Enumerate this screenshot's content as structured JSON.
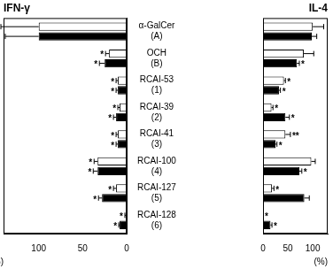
{
  "chart_data": [
    {
      "type": "bar",
      "orientation": "horizontal",
      "title": "IFN-γ",
      "xlabel": "(%)",
      "categories": [
        [
          "α-GalCer",
          "(A)"
        ],
        [
          "OCH",
          "(B)"
        ],
        [
          "RCAI-53",
          "(1)"
        ],
        [
          "RCAI-39",
          "(2)"
        ],
        [
          "RCAI-41",
          "(3)"
        ],
        [
          "RCAI-100",
          "(4)"
        ],
        [
          "RCAI-127",
          "(5)"
        ],
        [
          "RCAI-128",
          "(6)"
        ]
      ],
      "series": [
        {
          "color": "#ffffff",
          "values": [
            100,
            20,
            10,
            8,
            10,
            33,
            12,
            1
          ],
          "errors": [
            43,
            4,
            2,
            2,
            2,
            4,
            3,
            1
          ],
          "significance": [
            null,
            "*",
            "*",
            "*",
            "*",
            "*",
            "*",
            "*"
          ]
        },
        {
          "color": "#000000",
          "values": [
            100,
            25,
            10,
            12,
            10,
            33,
            28,
            8
          ],
          "errors": [
            38,
            6,
            2,
            3,
            2,
            5,
            4,
            1
          ],
          "significance": [
            null,
            "*",
            "*",
            "*",
            "*",
            "*",
            "*",
            "*"
          ]
        }
      ],
      "xlim": [
        0,
        140
      ],
      "xticks": [
        0,
        50,
        100
      ],
      "grid": false
    },
    {
      "type": "bar",
      "orientation": "horizontal",
      "title": "IL-4",
      "xlabel": "(%)",
      "categories": [
        [
          "α-GalCer",
          "(A)"
        ],
        [
          "OCH",
          "(B)"
        ],
        [
          "RCAI-53",
          "(1)"
        ],
        [
          "RCAI-39",
          "(2)"
        ],
        [
          "RCAI-41",
          "(3)"
        ],
        [
          "RCAI-100",
          "(4)"
        ],
        [
          "RCAI-127",
          "(5)"
        ],
        [
          "RCAI-128",
          "(6)"
        ]
      ],
      "series": [
        {
          "color": "#ffffff",
          "values": [
            100,
            82,
            42,
            17,
            45,
            97,
            18,
            0
          ],
          "errors": [
            22,
            20,
            3,
            3,
            10,
            8,
            4,
            0
          ],
          "significance": [
            null,
            null,
            "*",
            "*",
            "**",
            null,
            "*",
            "*"
          ]
        },
        {
          "color": "#000000",
          "values": [
            98,
            68,
            32,
            45,
            25,
            73,
            83,
            15
          ],
          "errors": [
            10,
            5,
            3,
            8,
            3,
            5,
            10,
            3
          ],
          "significance": [
            null,
            "*",
            "*",
            "*",
            "*",
            "*",
            null,
            "*"
          ]
        }
      ],
      "xlim": [
        0,
        130
      ],
      "xticks": [
        0,
        50,
        100
      ],
      "grid": false
    }
  ]
}
